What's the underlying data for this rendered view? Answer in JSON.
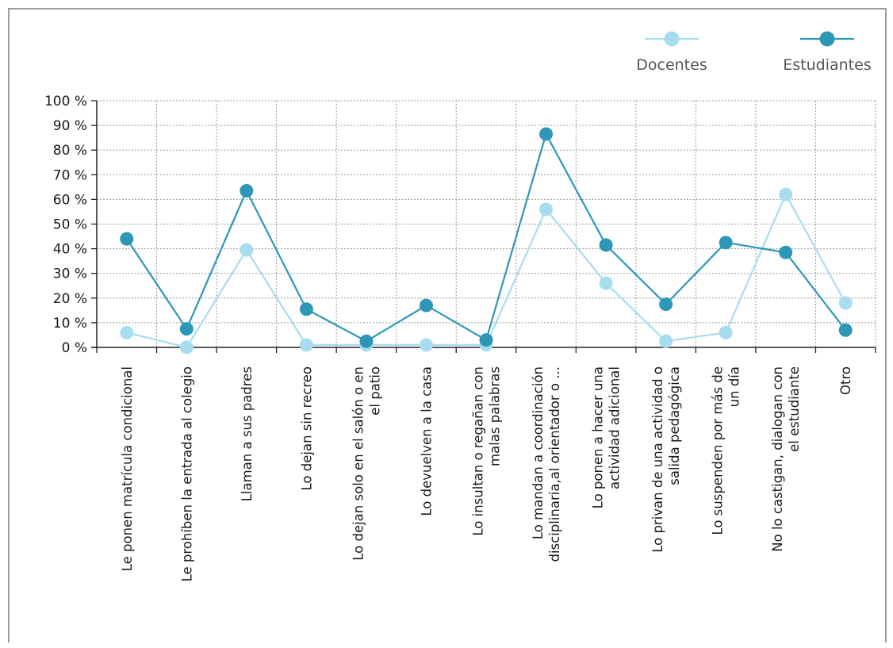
{
  "chart_data": {
    "type": "line",
    "title": "",
    "xlabel": "",
    "ylabel": "",
    "ylim": [
      0,
      100
    ],
    "y_ticks": [
      "0 %",
      "10 %",
      "20 %",
      "30 %",
      "40 %",
      "50 %",
      "60 %",
      "70 %",
      "80 %",
      "90 %",
      "100 %"
    ],
    "grid": true,
    "legend_position": "top-right",
    "categories": [
      [
        "Le ponen matrícula condicional"
      ],
      [
        "Le prohíben la entrada al colegio"
      ],
      [
        "Llaman a sus padres"
      ],
      [
        "Lo dejan sin recreo"
      ],
      [
        "Lo dejan solo en el salón o en",
        "el patio"
      ],
      [
        "Lo devuelven a la casa"
      ],
      [
        "Lo insultan o regañan con",
        "malas palabras"
      ],
      [
        "Lo mandan a coordinación",
        "disciplinaria,al orientador o ..."
      ],
      [
        "Lo ponen a hacer una",
        "actividad adicional"
      ],
      [
        "Lo privan de una actividad o",
        "salida pedagógica"
      ],
      [
        "Lo suspenden por más de",
        "un día"
      ],
      [
        "No lo castigan,  dialogan con",
        "el estudiante"
      ],
      [
        "Otro"
      ]
    ],
    "series": [
      {
        "name": "Docentes",
        "color": "#a8dcef",
        "values": [
          6,
          0,
          39.5,
          1,
          1,
          1,
          1,
          56,
          26,
          2.5,
          6,
          62,
          18
        ]
      },
      {
        "name": "Estudiantes",
        "color": "#2e97b7",
        "values": [
          44,
          7.5,
          63.5,
          15.5,
          2.5,
          17,
          3,
          86.5,
          41.5,
          17.5,
          42.5,
          38.5,
          7
        ]
      }
    ]
  }
}
